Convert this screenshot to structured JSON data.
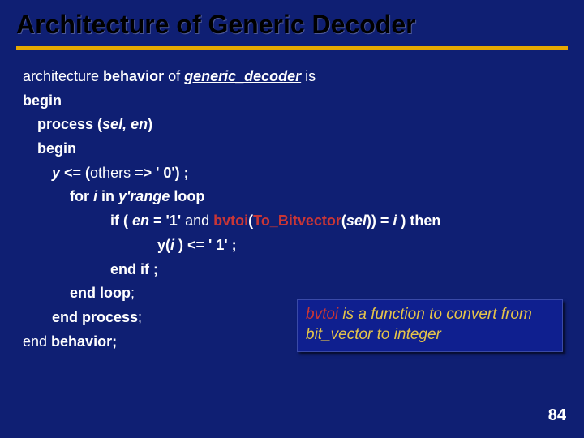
{
  "title": "Architecture of Generic Decoder",
  "code": {
    "l1_a": "architecture ",
    "l1_b": "behavior ",
    "l1_c": "of ",
    "l1_d": "generic_decoder",
    "l1_e": " is",
    "l2": "begin",
    "l3_a": "process ",
    "l3_b": "(",
    "l3_c": "sel, en",
    "l3_d": ")",
    "l4": "begin",
    "l5_a": "y ",
    "l5_b": "<= (",
    "l5_c": "others",
    "l5_d": " => ' 0') ;",
    "l6_a": "for ",
    "l6_b": "i  ",
    "l6_c": "in ",
    "l6_d": "y'range",
    "l6_e": " loop",
    "l7_a": "if ",
    "l7_b": "( ",
    "l7_c": "en",
    "l7_d": " = '1' ",
    "l7_e": "and ",
    "l7_f": "bvtoi",
    "l7_g": "(",
    "l7_h": "To_Bitvector",
    "l7_i": "(",
    "l7_j": "sel",
    "l7_k": "))",
    "l7_l": " = ",
    "l7_m": "i ",
    "l7_n": ") ",
    "l7_o": "then",
    "l8_a": "y(",
    "l8_b": "i ",
    "l8_c": ") <= ' 1' ;",
    "l9": "end if ;",
    "l10_a": "end loop",
    "l10_b": ";",
    "l11_a": "end process",
    "l11_b": ";",
    "l12_a": "end ",
    "l12_b": "behavior;"
  },
  "callout": {
    "fn": "bvtoi",
    "text1": " is a function to convert from ",
    "text2": "bit_vector",
    "text3": " to ",
    "text4": "integer"
  },
  "pagenum": "84",
  "colors": {
    "background": "#0f1f73",
    "title": "#000000",
    "divider": "#e6a800",
    "text": "#ffffff",
    "red": "#c93636",
    "yellow": "#e6c44a",
    "callout_bg": "#0f1f8f"
  }
}
